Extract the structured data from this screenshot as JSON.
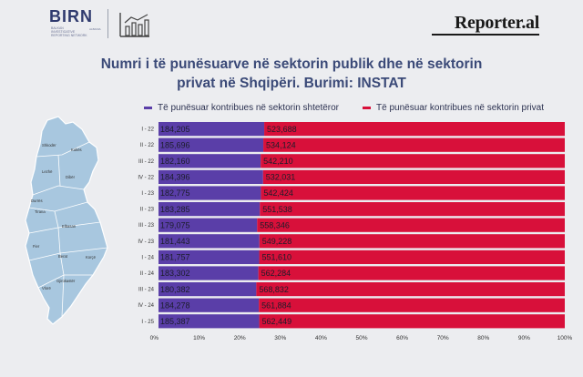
{
  "branding": {
    "birn_logo": "BIRN",
    "birn_tagline": "BALKAN INVESTIGATIVE REPORTING NETWORK",
    "birn_country": "ALBANIA",
    "reporter_logo": "Reporter.al"
  },
  "colors": {
    "public": "#5a3ea8",
    "private": "#d8103a",
    "map_fill": "#a8c7df",
    "title": "#3b4a78"
  },
  "icons": [
    "bar-chart-icon"
  ],
  "map": {
    "labels": [
      "Shkodër",
      "Kukës",
      "Lezhë",
      "Dibër",
      "Durrës",
      "Tirana",
      "Elbasan",
      "Fier",
      "Berat",
      "Korçë",
      "Gjirokastër",
      "Vlorë"
    ]
  },
  "chart_data": {
    "type": "bar",
    "orientation": "horizontal",
    "stacked": "percent",
    "title": "Numri i të punësuarve në sektorin publik dhe në sektorin privat në Shqipëri. Burimi: INSTAT",
    "title_line1": "Numri i të punësuarve në sektorin publik dhe në sektorin",
    "title_line2": "privat në Shqipëri. Burimi: INSTAT",
    "categories": [
      "I - 22",
      "II - 22",
      "III - 22",
      "IV - 22",
      "I - 23",
      "II - 23",
      "III - 23",
      "IV - 23",
      "I - 24",
      "II - 24",
      "III - 24",
      "IV - 24",
      "I - 25"
    ],
    "series": [
      {
        "name": "Të punësuar kontribues në sektorin shtetëror",
        "color": "#5a3ea8",
        "values": [
          184205,
          185696,
          182160,
          184396,
          182775,
          183285,
          179075,
          181443,
          181757,
          183302,
          180382,
          184278,
          185387
        ],
        "labels": [
          "184,205",
          "185,696",
          "182,160",
          "184,396",
          "182,775",
          "183,285",
          "179,075",
          "181,443",
          "181,757",
          "183,302",
          "180,382",
          "184,278",
          "185,387"
        ]
      },
      {
        "name": "Të punësuar kontribues në sektorin privat",
        "color": "#d8103a",
        "values": [
          523688,
          534124,
          542210,
          532031,
          542424,
          551538,
          558346,
          549228,
          551610,
          562284,
          568832,
          561884,
          562449
        ],
        "labels": [
          "523,688",
          "534,124",
          "542,210",
          "532,031",
          "542,424",
          "551,538",
          "558,346",
          "549,228",
          "551,610",
          "562,284",
          "568,832",
          "561,884",
          "562,449"
        ]
      }
    ],
    "x_ticks": [
      "0%",
      "10%",
      "20%",
      "30%",
      "40%",
      "50%",
      "60%",
      "70%",
      "80%",
      "90%",
      "100%"
    ],
    "xlim": [
      0,
      100
    ],
    "legend_position": "top",
    "grid": false
  }
}
